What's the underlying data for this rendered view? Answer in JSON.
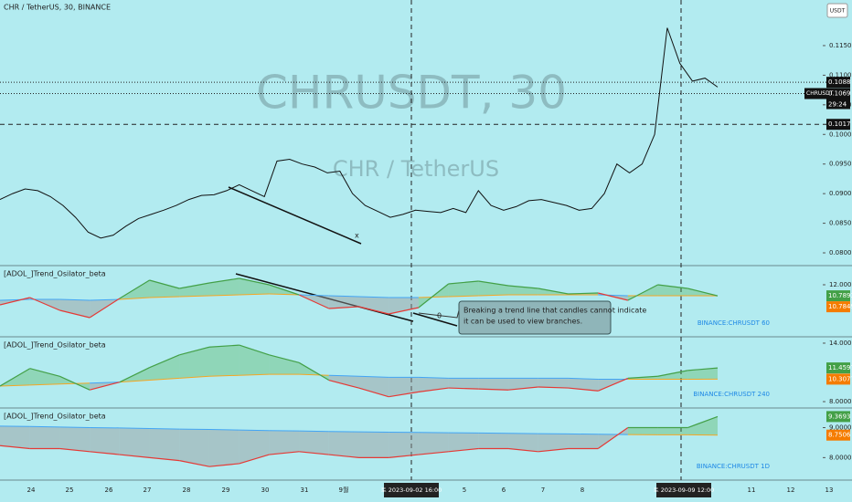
{
  "header": {
    "symbol_title": "CHR / TetherUS, 30, BINANCE",
    "currency_button": "USDT",
    "watermark": "CHRUSDT, 30",
    "watermark_sub": "CHR / TetherUS"
  },
  "chart_data": [
    {
      "type": "line",
      "color": "#111111",
      "values": [
        0.089,
        0.09,
        0.0908,
        0.0905,
        0.0895,
        0.088,
        0.086,
        0.0835,
        0.0825,
        0.083,
        0.0845,
        0.0858,
        0.0865,
        0.0872,
        0.088,
        0.089,
        0.0897,
        0.0898,
        0.0905,
        0.0915,
        0.0905,
        0.0895,
        0.0955,
        0.0958,
        0.095,
        0.0945,
        0.0935,
        0.0938,
        0.09,
        0.088,
        0.087,
        0.086,
        0.0865,
        0.0872,
        0.087,
        0.0868,
        0.0875,
        0.0868,
        0.0905,
        0.088,
        0.0872,
        0.0878,
        0.0888,
        0.089,
        0.0885,
        0.088,
        0.0872,
        0.0875,
        0.09,
        0.095,
        0.0935,
        0.095,
        0.1,
        0.118,
        0.112,
        0.109,
        0.1095,
        0.108
      ],
      "ylim": [
        0.078,
        0.1227
      ],
      "yticks": [
        {
          "value": 0.115,
          "label": "0.1150"
        },
        {
          "value": 0.11,
          "label": "0.1100"
        },
        {
          "value": 0.105,
          "label": "0.1050"
        },
        {
          "value": 0.1,
          "label": "0.1000"
        },
        {
          "value": 0.095,
          "label": "0.0950"
        },
        {
          "value": 0.09,
          "label": "0.0900"
        },
        {
          "value": 0.085,
          "label": "0.0850"
        },
        {
          "value": 0.08,
          "label": "0.0800"
        }
      ],
      "price_tags": [
        {
          "value": 0.1088,
          "label": "0.1088"
        },
        {
          "value": 0.1069,
          "label": "0.1069",
          "name": "CHRUSDT",
          "countdown": "29:24"
        },
        {
          "value": 0.1017,
          "label": "0.1017"
        }
      ],
      "drawing_marker": "x"
    },
    {
      "type": "oscillator",
      "title": "[ADOL_]Trend_Osilator_beta",
      "source": "BINANCE:CHRUSDT 60",
      "ylim": [
        6.4,
        14
      ],
      "yticks": [
        {
          "value": 12,
          "label": "12.0000"
        }
      ],
      "series": [
        {
          "name": "fast",
          "up_color": "#43a047",
          "down_color": "#e53935",
          "tag_color": "#43a047",
          "last_label": "10.7893",
          "values": [
            9.8,
            10.6,
            9.2,
            8.4,
            10.5,
            12.5,
            11.6,
            12.2,
            12.7,
            12.0,
            10.9,
            9.4,
            9.6,
            8.8,
            9.5,
            12.1,
            12.4,
            11.9,
            11.6,
            11.0,
            11.1,
            10.3,
            12.0,
            11.6,
            10.7893
          ]
        },
        {
          "name": "slow",
          "up_color": "#f5a623",
          "down_color": "#42a5f5",
          "tag_color": "#f57c00",
          "last_label": "10.7849",
          "values": [
            10.3,
            10.4,
            10.4,
            10.3,
            10.4,
            10.6,
            10.7,
            10.8,
            10.9,
            11.0,
            10.9,
            10.8,
            10.7,
            10.6,
            10.6,
            10.7,
            10.8,
            10.9,
            10.9,
            10.9,
            10.9,
            10.8,
            10.8,
            10.8,
            10.7849
          ]
        }
      ],
      "annotation": {
        "lines": [
          "Breaking a trend line that candles cannot indicate",
          "it can be used to view branches."
        ],
        "marker": "0"
      }
    },
    {
      "type": "oscillator",
      "title": "[ADOL_]Trend_Osilator_beta",
      "source": "BINANCE:CHRUSDT 240",
      "ylim": [
        7.44,
        14.56
      ],
      "yticks": [
        {
          "value": 14,
          "label": "14.0000"
        },
        {
          "value": 8,
          "label": "8.0000"
        }
      ],
      "series": [
        {
          "name": "fast",
          "up_color": "#43a047",
          "down_color": "#e53935",
          "tag_color": "#43a047",
          "last_label": "11.4597",
          "values": [
            9.6,
            11.4,
            10.6,
            9.2,
            10.0,
            11.5,
            12.8,
            13.6,
            13.8,
            12.8,
            12.0,
            10.2,
            9.4,
            8.5,
            9.0,
            9.4,
            9.3,
            9.2,
            9.5,
            9.4,
            9.1,
            10.4,
            10.6,
            11.2,
            11.4597
          ]
        },
        {
          "name": "slow",
          "up_color": "#f5a623",
          "down_color": "#42a5f5",
          "tag_color": "#f57c00",
          "last_label": "10.3077",
          "values": [
            9.6,
            9.7,
            9.8,
            9.9,
            10.0,
            10.2,
            10.4,
            10.6,
            10.7,
            10.8,
            10.8,
            10.7,
            10.6,
            10.5,
            10.5,
            10.4,
            10.4,
            10.4,
            10.4,
            10.4,
            10.3,
            10.3,
            10.3,
            10.3,
            10.3077
          ]
        }
      ]
    },
    {
      "type": "oscillator",
      "title": "[ADOL_]Trend_Osilator_beta",
      "source": "BINANCE:CHRUSDT 1D",
      "ylim": [
        7.28,
        9.625
      ],
      "yticks": [
        {
          "value": 9,
          "label": "9.0000"
        },
        {
          "value": 8,
          "label": "8.0000"
        }
      ],
      "series": [
        {
          "name": "fast",
          "up_color": "#43a047",
          "down_color": "#e53935",
          "tag_color": "#43a047",
          "last_label": "9.3693",
          "values": [
            8.4,
            8.3,
            8.3,
            8.2,
            8.1,
            8.0,
            7.9,
            7.7,
            7.8,
            8.1,
            8.2,
            8.1,
            8.0,
            8.0,
            8.1,
            8.2,
            8.3,
            8.3,
            8.2,
            8.3,
            8.3,
            9.0,
            9.0,
            9.0,
            9.3693
          ]
        },
        {
          "name": "slow",
          "up_color": "#f5a623",
          "down_color": "#42a5f5",
          "tag_color": "#f57c00",
          "last_label": "8.7506",
          "values": [
            9.05,
            9.04,
            9.02,
            9.0,
            8.99,
            8.97,
            8.95,
            8.94,
            8.92,
            8.9,
            8.89,
            8.87,
            8.86,
            8.85,
            8.84,
            8.83,
            8.82,
            8.81,
            8.8,
            8.79,
            8.78,
            8.77,
            8.76,
            8.76,
            8.7506
          ]
        }
      ]
    }
  ],
  "time_axis": {
    "labels": [
      "24",
      "25",
      "26",
      "27",
      "28",
      "29",
      "30",
      "31",
      "9월",
      "토 2023-09-02  16:00",
      "5",
      "6",
      "7",
      "8",
      "토 2023-09-09  12:00",
      "11",
      "12",
      "13"
    ]
  }
}
